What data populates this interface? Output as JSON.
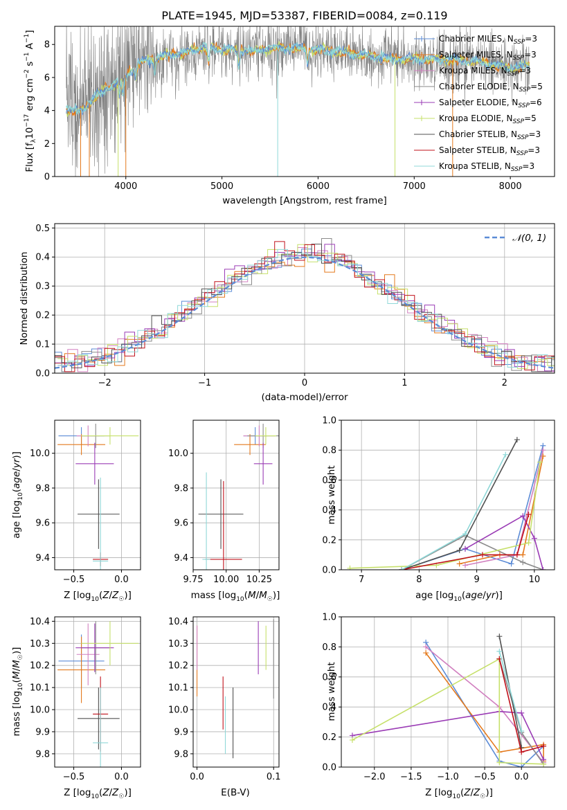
{
  "figure": {
    "title": "PLATE=1945, MJD=53387, FIBERID=0084, z=0.119"
  },
  "colors": [
    "#5b8bd6",
    "#e4791c",
    "#d17fbf",
    "#8a8a8a",
    "#9a3bb5",
    "#c6e06a",
    "#505050",
    "#c0101a",
    "#8fd8d8"
  ],
  "chart_data": [
    {
      "type": "line",
      "id": "spectrum",
      "xlabel": "wavelength [Angstrom, rest frame]",
      "ylabel": "Flux [f_λ 10^-17 erg cm^-2 s^-1 A^-1]",
      "xlim": [
        3260,
        8460
      ],
      "ylim": [
        0,
        9.1
      ],
      "xticks": [
        4000,
        5000,
        6000,
        7000,
        8000
      ],
      "yticks": [
        0,
        2,
        4,
        6,
        8
      ],
      "grid": false,
      "legend_position": "top-right",
      "series": [
        {
          "name": "Chabrier MILES, N_SSP=3"
        },
        {
          "name": "Salpeter MILES, N_SSP=3"
        },
        {
          "name": "Kroupa MILES, N_SSP=3"
        },
        {
          "name": "Chabrier ELODIE, N_SSP=5"
        },
        {
          "name": "Salpeter ELODIE, N_SSP=6"
        },
        {
          "name": "Kroupa ELODIE, N_SSP=5"
        },
        {
          "name": "Chabrier STELIB, N_SSP=3"
        },
        {
          "name": "Salpeter STELIB, N_SSP=3"
        },
        {
          "name": "Kroupa STELIB, N_SSP=3"
        }
      ],
      "continuum_model": {
        "x": [
          3380,
          3500,
          3600,
          3700,
          3800,
          3900,
          4000,
          4100,
          4200,
          4400,
          4600,
          4800,
          5000,
          5300,
          5600,
          6000,
          6400,
          6800,
          7200,
          7600,
          8000,
          8200
        ],
        "y": [
          4.1,
          3.9,
          4.3,
          4.9,
          5.4,
          5.6,
          6.0,
          6.8,
          7.0,
          7.3,
          7.5,
          7.8,
          7.7,
          7.6,
          7.8,
          7.7,
          7.4,
          7.1,
          7.1,
          7.0,
          6.6,
          6.7
        ]
      }
    },
    {
      "type": "line",
      "id": "residuals",
      "xlabel": "(data-model)/error",
      "ylabel": "Normed distribution",
      "xlim": [
        -2.5,
        2.5
      ],
      "ylim": [
        0,
        0.515
      ],
      "xticks": [
        -2,
        -1,
        0,
        1,
        2
      ],
      "yticks": [
        0.0,
        0.1,
        0.2,
        0.3,
        0.4,
        0.5
      ],
      "grid": true,
      "legend_position": "top-right",
      "reference": {
        "name": "𝒩(0, 1)",
        "color": "#5b8bd6"
      }
    },
    {
      "type": "scatter",
      "id": "age-vs-z",
      "xlabel": "Z [log10(Z/Z☉)]",
      "ylabel": "age [log10(age/yr)]",
      "xlim": [
        -0.7,
        0.2
      ],
      "ylim": [
        9.33,
        10.19
      ],
      "xticks": [
        -0.5,
        0.0
      ],
      "yticks": [
        9.4,
        9.6,
        9.8,
        10.0
      ],
      "grid": true,
      "points": [
        {
          "x": -0.42,
          "y": 10.1,
          "xerr": 0.24,
          "yerr": 0.05,
          "c": 0
        },
        {
          "x": -0.42,
          "y": 10.05,
          "xerr": 0.25,
          "yerr": 0.06,
          "c": 1
        },
        {
          "x": -0.35,
          "y": 10.1,
          "xerr": 0.12,
          "yerr": 0.06,
          "c": 2
        },
        {
          "x": -0.27,
          "y": 10.1,
          "xerr": 0.15,
          "yerr": 0.07,
          "c": 3
        },
        {
          "x": -0.28,
          "y": 9.94,
          "xerr": 0.2,
          "yerr": 0.12,
          "c": 4
        },
        {
          "x": -0.12,
          "y": 10.1,
          "xerr": 0.3,
          "yerr": 0.05,
          "c": 5
        },
        {
          "x": -0.24,
          "y": 9.65,
          "xerr": 0.22,
          "yerr": 0.2,
          "c": 6
        },
        {
          "x": -0.22,
          "y": 9.39,
          "xerr": 0.08,
          "yerr": 0.04,
          "c": 7
        },
        {
          "x": -0.22,
          "y": 9.38,
          "xerr": 0.08,
          "yerr": 0.48,
          "c": 8
        }
      ]
    },
    {
      "type": "scatter",
      "id": "age-vs-mass",
      "xlabel": "mass [log10(M/M☉)]",
      "ylabel": "",
      "xlim": [
        9.75,
        10.4
      ],
      "ylim": [
        9.33,
        10.19
      ],
      "xticks": [
        9.75,
        10.0,
        10.25
      ],
      "yticks": [
        9.4,
        9.6,
        9.8,
        10.0
      ],
      "grid": true,
      "points": [
        {
          "x": 10.22,
          "y": 10.1,
          "xerr": 0.09,
          "yerr": 0.05,
          "c": 0
        },
        {
          "x": 10.18,
          "y": 10.05,
          "xerr": 0.12,
          "yerr": 0.06,
          "c": 1
        },
        {
          "x": 10.25,
          "y": 10.1,
          "xerr": 0.12,
          "yerr": 0.06,
          "c": 2
        },
        {
          "x": 10.28,
          "y": 10.1,
          "xerr": 0.12,
          "yerr": 0.07,
          "c": 3
        },
        {
          "x": 10.28,
          "y": 9.94,
          "xerr": 0.07,
          "yerr": 0.12,
          "c": 4
        },
        {
          "x": 10.3,
          "y": 10.1,
          "xerr": 0.08,
          "yerr": 0.05,
          "c": 5
        },
        {
          "x": 9.96,
          "y": 9.65,
          "xerr": 0.17,
          "yerr": 0.2,
          "c": 6
        },
        {
          "x": 9.98,
          "y": 9.39,
          "xerr": 0.14,
          "yerr": 0.45,
          "c": 7
        },
        {
          "x": 9.85,
          "y": 9.39,
          "xerr": 0.03,
          "yerr": 0.5,
          "c": 8
        }
      ]
    },
    {
      "type": "line",
      "id": "weight-vs-age",
      "xlabel": "age [log10(age/yr)]",
      "ylabel": "mass weight",
      "xlim": [
        6.65,
        10.35
      ],
      "ylim": [
        0,
        1.0
      ],
      "xticks": [
        7,
        8,
        9,
        10
      ],
      "yticks": [
        0.0,
        0.2,
        0.4,
        0.6,
        0.8,
        1.0
      ],
      "grid": true,
      "series": [
        {
          "c": 0,
          "x": [
            7.7,
            8.8,
            9.6,
            10.15
          ],
          "y": [
            0.0,
            0.14,
            0.04,
            0.83
          ]
        },
        {
          "c": 1,
          "x": [
            8.7,
            9.4,
            9.8,
            10.15
          ],
          "y": [
            0.04,
            0.1,
            0.1,
            0.76
          ]
        },
        {
          "c": 2,
          "x": [
            8.8,
            9.7,
            10.15
          ],
          "y": [
            0.03,
            0.1,
            0.8
          ]
        },
        {
          "c": 3,
          "x": [
            7.7,
            8.8,
            9.8,
            10.15
          ],
          "y": [
            0.0,
            0.23,
            0.05,
            0.0
          ]
        },
        {
          "c": 4,
          "x": [
            8.8,
            9.8,
            10.0,
            10.15
          ],
          "y": [
            0.14,
            0.36,
            0.21,
            0.0
          ]
        },
        {
          "c": 5,
          "x": [
            6.8,
            8.3,
            9.9,
            10.1
          ],
          "y": [
            0.01,
            0.03,
            0.18,
            0.72
          ]
        },
        {
          "c": 6,
          "x": [
            7.7,
            8.7,
            9.7
          ],
          "y": [
            0.0,
            0.13,
            0.87
          ]
        },
        {
          "c": 7,
          "x": [
            7.7,
            9.1,
            9.7,
            9.9
          ],
          "y": [
            0.0,
            0.1,
            0.1,
            0.37
          ]
        },
        {
          "c": 8,
          "x": [
            7.7,
            8.8,
            9.5
          ],
          "y": [
            0.0,
            0.24,
            0.77
          ]
        }
      ]
    },
    {
      "type": "scatter",
      "id": "mass-vs-z",
      "xlabel": "Z [log10(Z/Z☉)]",
      "ylabel": "mass [log10(M/M☉)]",
      "xlim": [
        -0.7,
        0.2
      ],
      "ylim": [
        9.74,
        10.42
      ],
      "xticks": [
        -0.5,
        0.0
      ],
      "yticks": [
        9.8,
        9.9,
        10.0,
        10.1,
        10.2,
        10.3,
        10.4
      ],
      "grid": true,
      "points": [
        {
          "x": -0.42,
          "y": 10.22,
          "xerr": 0.24,
          "yerr": 0.12,
          "c": 0
        },
        {
          "x": -0.42,
          "y": 10.18,
          "xerr": 0.25,
          "yerr": 0.15,
          "c": 1
        },
        {
          "x": -0.35,
          "y": 10.25,
          "xerr": 0.12,
          "yerr": 0.14,
          "c": 2
        },
        {
          "x": -0.27,
          "y": 10.28,
          "xerr": 0.15,
          "yerr": 0.12,
          "c": 3
        },
        {
          "x": -0.28,
          "y": 10.28,
          "xerr": 0.2,
          "yerr": 0.11,
          "c": 4
        },
        {
          "x": -0.12,
          "y": 10.3,
          "xerr": 0.3,
          "yerr": 0.1,
          "c": 5
        },
        {
          "x": -0.24,
          "y": 9.96,
          "xerr": 0.22,
          "yerr": 0.14,
          "c": 6
        },
        {
          "x": -0.22,
          "y": 9.98,
          "xerr": 0.08,
          "yerr": 0.17,
          "c": 7
        },
        {
          "x": -0.22,
          "y": 9.85,
          "xerr": 0.08,
          "yerr": 0.25,
          "c": 8
        }
      ]
    },
    {
      "type": "scatter",
      "id": "mass-vs-ebv",
      "xlabel": "E(B-V)",
      "ylabel": "",
      "xlim": [
        -0.005,
        0.107
      ],
      "ylim": [
        9.74,
        10.42
      ],
      "xticks": [
        0.0,
        0.1
      ],
      "yticks": [
        9.8,
        9.9,
        10.0,
        10.1,
        10.2,
        10.3,
        10.4
      ],
      "grid": true,
      "points": [
        {
          "x": 0.0,
          "y": 10.22,
          "xerr": 0,
          "yerr": 0.16,
          "c": 1
        },
        {
          "x": 0.0,
          "y": 10.28,
          "xerr": 0,
          "yerr": 0.1,
          "c": 2
        },
        {
          "x": 0.08,
          "y": 10.28,
          "xerr": 0,
          "yerr": 0.12,
          "c": 4
        },
        {
          "x": 0.09,
          "y": 10.28,
          "xerr": 0,
          "yerr": 0.1,
          "c": 5
        },
        {
          "x": 0.1,
          "y": 10.23,
          "xerr": 0,
          "yerr": 0.18,
          "c": 3
        },
        {
          "x": 0.047,
          "y": 9.94,
          "xerr": 0,
          "yerr": 0.16,
          "c": 6
        },
        {
          "x": 0.034,
          "y": 10.03,
          "xerr": 0,
          "yerr": 0.12,
          "c": 7
        },
        {
          "x": 0.037,
          "y": 9.93,
          "xerr": 0,
          "yerr": 0.13,
          "c": 8
        }
      ]
    },
    {
      "type": "line",
      "id": "weight-vs-z",
      "xlabel": "Z [log10(Z/Z☉)]",
      "ylabel": "mass weight",
      "xlim": [
        -2.45,
        0.45
      ],
      "ylim": [
        0,
        1.0
      ],
      "xticks": [
        -2.0,
        -1.5,
        -1.0,
        -0.5,
        0.0
      ],
      "yticks": [
        0.0,
        0.2,
        0.4,
        0.6,
        0.8,
        1.0
      ],
      "grid": true,
      "series": [
        {
          "c": 0,
          "x": [
            -1.3,
            -0.3,
            0.0,
            0.3
          ],
          "y": [
            0.83,
            0.04,
            0.0,
            0.14
          ]
        },
        {
          "c": 1,
          "x": [
            -1.3,
            -0.3,
            0.3,
            0.3
          ],
          "y": [
            0.76,
            0.1,
            0.15,
            0.04
          ]
        },
        {
          "c": 2,
          "x": [
            -1.3,
            -0.3,
            0.3
          ],
          "y": [
            0.8,
            0.4,
            0.03
          ]
        },
        {
          "c": 3,
          "x": [
            -0.3,
            0.0,
            0.3
          ],
          "y": [
            0.72,
            0.23,
            0.02
          ]
        },
        {
          "c": 4,
          "x": [
            -2.3,
            -0.3,
            0.0,
            0.3
          ],
          "y": [
            0.21,
            0.37,
            0.36,
            0.05
          ]
        },
        {
          "c": 5,
          "x": [
            -2.3,
            -0.3,
            -0.3,
            0.3
          ],
          "y": [
            0.18,
            0.72,
            0.03,
            0.02
          ]
        },
        {
          "c": 6,
          "x": [
            -0.3,
            0.0
          ],
          "y": [
            0.87,
            0.13
          ]
        },
        {
          "c": 7,
          "x": [
            -0.3,
            0.0,
            0.3
          ],
          "y": [
            0.72,
            0.1,
            0.14
          ]
        },
        {
          "c": 8,
          "x": [
            -0.3,
            0.0
          ],
          "y": [
            0.77,
            0.24
          ]
        }
      ]
    }
  ]
}
